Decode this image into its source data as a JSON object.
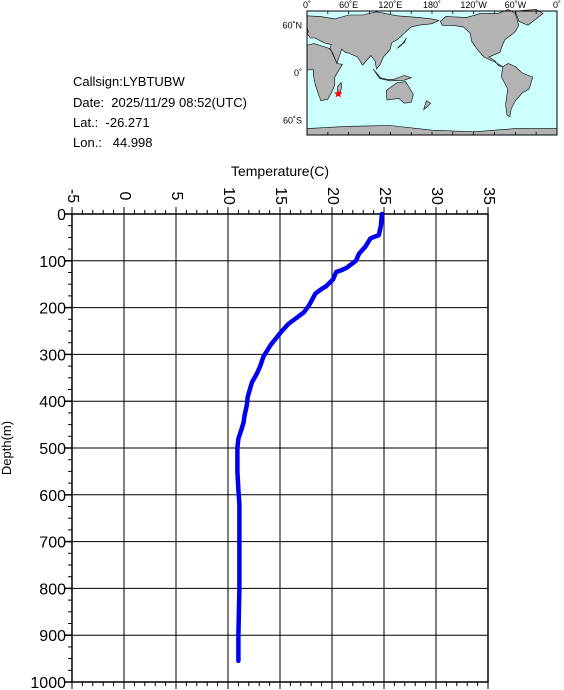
{
  "info": {
    "callsign": "Callsign:LYBTUBW",
    "date": "Date:  2025/11/29 08:52(UTC)",
    "lat": "Lat.:  -26.271",
    "lon": "Lon.:   44.998"
  },
  "map": {
    "top_labels": [
      "0˚",
      "60˚E",
      "120˚E",
      "180˚",
      "120˚W",
      "60˚W",
      "0˚"
    ],
    "left_labels": [
      "60˚N",
      "0˚",
      "60˚S"
    ],
    "ocean_color": "#ccffff",
    "land_color": "#b3b3b3",
    "marker": {
      "lon": 44.998,
      "lat": -26.271,
      "color": "#ff0000",
      "icon": "star-icon"
    }
  },
  "chart_data": {
    "type": "line",
    "xlabel": "Temperature(C)",
    "ylabel": "Depth(m)",
    "xlim": [
      -5,
      35
    ],
    "ylim": [
      0,
      1000
    ],
    "y_inverted": true,
    "x_ticks": [
      "-5",
      "0",
      "5",
      "10",
      "15",
      "20",
      "25",
      "30",
      "35"
    ],
    "y_ticks": [
      "0",
      "100",
      "200",
      "300",
      "400",
      "500",
      "600",
      "700",
      "800",
      "900",
      "1000"
    ],
    "grid": true,
    "line_color": "#0000ee",
    "series": [
      {
        "x": [
          24.8,
          24.7,
          24.5,
          23.7,
          23.2,
          22.6,
          22.3,
          21.4,
          20.9,
          20.4,
          20.1,
          19.4,
          19.0,
          18.4,
          17.8,
          17.3,
          16.7,
          15.8,
          15.0,
          14.1,
          13.4,
          13.1,
          12.8,
          12.3,
          11.9,
          11.8,
          11.6,
          11.5,
          11.3,
          11.0,
          10.9,
          10.9,
          11.0,
          11.1,
          11.1,
          11.1,
          11.0,
          11.0,
          11.0
        ],
        "y": [
          0,
          25,
          45,
          52,
          70,
          85,
          100,
          115,
          120,
          124,
          140,
          155,
          160,
          170,
          195,
          210,
          220,
          235,
          255,
          280,
          305,
          325,
          340,
          360,
          390,
          410,
          430,
          445,
          460,
          480,
          500,
          550,
          590,
          620,
          700,
          800,
          900,
          940,
          955
        ]
      }
    ]
  }
}
